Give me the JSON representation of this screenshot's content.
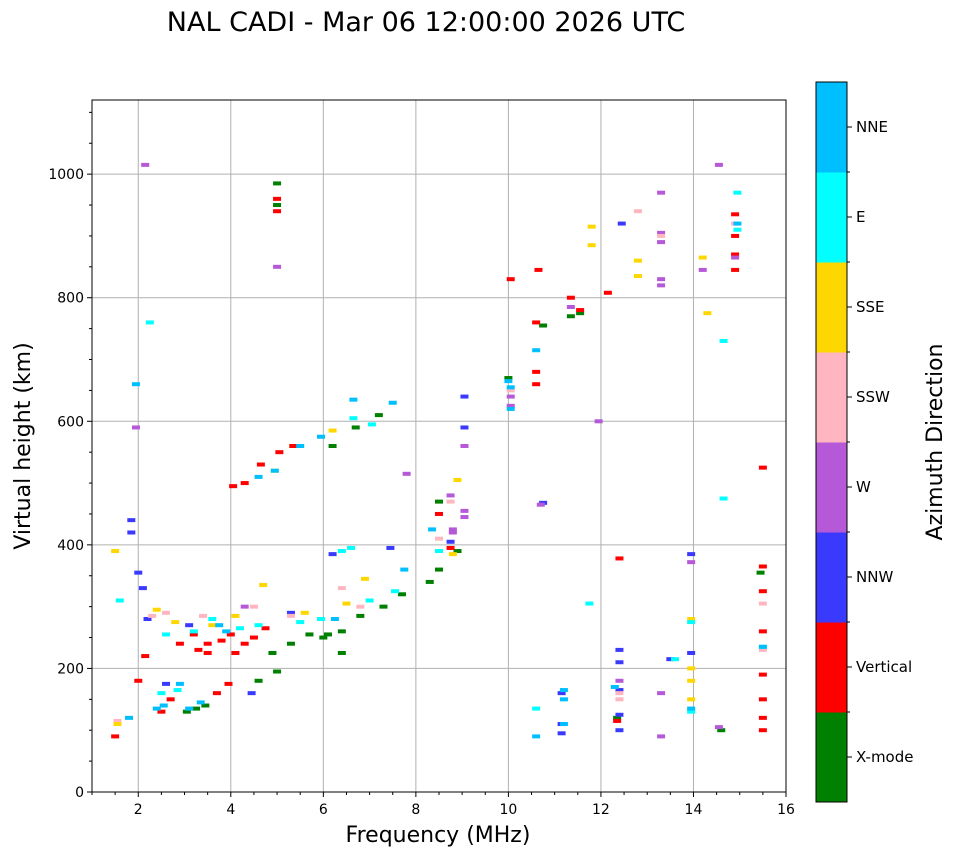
{
  "chart_data": {
    "type": "scatter",
    "title": "NAL CADI - Mar 06 12:00:00 2026 UTC",
    "xlabel": "Frequency (MHz)",
    "ylabel": "Virtual height (km)",
    "xlim": [
      1,
      16
    ],
    "ylim": [
      0,
      1120
    ],
    "xticks": [
      2,
      4,
      6,
      8,
      10,
      12,
      14,
      16
    ],
    "yticks": [
      0,
      200,
      400,
      600,
      800,
      1000
    ],
    "xtick_labels": [
      "2",
      "4",
      "6",
      "8",
      "10",
      "12",
      "14",
      "16"
    ],
    "ytick_labels": [
      "0",
      "200",
      "400",
      "600",
      "800",
      "1000"
    ],
    "grid": true,
    "colorbar": {
      "label": "Azimuth Direction",
      "categories": [
        {
          "name": "X-mode",
          "color": "#008000"
        },
        {
          "name": "Vertical",
          "color": "#ff0000"
        },
        {
          "name": "NNW",
          "color": "#3a3aff"
        },
        {
          "name": "W",
          "color": "#b559d9"
        },
        {
          "name": "SSW",
          "color": "#ffb6c1"
        },
        {
          "name": "SSE",
          "color": "#ffd700"
        },
        {
          "name": "E",
          "color": "#00ffff"
        },
        {
          "name": "NNE",
          "color": "#00bfff"
        }
      ]
    },
    "series": [
      {
        "name": "X-mode",
        "points": [
          [
            3.05,
            130
          ],
          [
            3.25,
            135
          ],
          [
            3.45,
            140
          ],
          [
            4.6,
            180
          ],
          [
            5.3,
            240
          ],
          [
            5.7,
            255
          ],
          [
            6.1,
            255
          ],
          [
            6.4,
            260
          ],
          [
            6.8,
            285
          ],
          [
            7.3,
            300
          ],
          [
            7.7,
            320
          ],
          [
            8.3,
            340
          ],
          [
            8.5,
            360
          ],
          [
            8.5,
            470
          ],
          [
            8.9,
            390
          ],
          [
            7.2,
            610
          ],
          [
            6.7,
            590
          ],
          [
            6.2,
            560
          ],
          [
            5.0,
            985
          ],
          [
            5.0,
            950
          ],
          [
            10.0,
            670
          ],
          [
            10.75,
            755
          ],
          [
            11.55,
            775
          ],
          [
            11.35,
            770
          ],
          [
            12.35,
            120
          ],
          [
            14.6,
            100
          ],
          [
            15.45,
            355
          ],
          [
            6.4,
            225
          ],
          [
            6.0,
            250
          ],
          [
            5.0,
            195
          ],
          [
            4.9,
            225
          ]
        ]
      },
      {
        "name": "Vertical",
        "points": [
          [
            1.5,
            90
          ],
          [
            2.0,
            180
          ],
          [
            2.15,
            220
          ],
          [
            2.5,
            130
          ],
          [
            2.7,
            150
          ],
          [
            2.9,
            240
          ],
          [
            3.2,
            255
          ],
          [
            3.5,
            240
          ],
          [
            3.8,
            245
          ],
          [
            4.0,
            255
          ],
          [
            4.1,
            225
          ],
          [
            4.3,
            240
          ],
          [
            4.5,
            250
          ],
          [
            4.75,
            265
          ],
          [
            3.95,
            175
          ],
          [
            3.7,
            160
          ],
          [
            3.5,
            225
          ],
          [
            3.3,
            230
          ],
          [
            4.05,
            495
          ],
          [
            4.3,
            500
          ],
          [
            4.65,
            530
          ],
          [
            5.05,
            550
          ],
          [
            5.35,
            560
          ],
          [
            5.0,
            940
          ],
          [
            5.0,
            960
          ],
          [
            8.5,
            450
          ],
          [
            8.75,
            395
          ],
          [
            10.6,
            760
          ],
          [
            10.65,
            845
          ],
          [
            10.6,
            680
          ],
          [
            10.6,
            660
          ],
          [
            11.35,
            800
          ],
          [
            11.55,
            780
          ],
          [
            12.15,
            808
          ],
          [
            12.4,
            378
          ],
          [
            12.35,
            115
          ],
          [
            14.9,
            935
          ],
          [
            14.9,
            870
          ],
          [
            14.9,
            845
          ],
          [
            14.9,
            900
          ],
          [
            15.5,
            525
          ],
          [
            15.5,
            365
          ],
          [
            15.5,
            325
          ],
          [
            15.5,
            260
          ],
          [
            15.5,
            190
          ],
          [
            15.5,
            150
          ],
          [
            15.5,
            120
          ],
          [
            15.5,
            100
          ],
          [
            10.05,
            830
          ]
        ]
      },
      {
        "name": "NNW",
        "points": [
          [
            1.85,
            420
          ],
          [
            1.85,
            440
          ],
          [
            2.0,
            355
          ],
          [
            2.1,
            330
          ],
          [
            2.2,
            280
          ],
          [
            4.45,
            160
          ],
          [
            6.2,
            385
          ],
          [
            8.75,
            405
          ],
          [
            9.05,
            590
          ],
          [
            9.05,
            640
          ],
          [
            10.75,
            468
          ],
          [
            11.15,
            160
          ],
          [
            11.15,
            110
          ],
          [
            11.15,
            95
          ],
          [
            12.4,
            230
          ],
          [
            12.4,
            210
          ],
          [
            12.4,
            100
          ],
          [
            12.4,
            125
          ],
          [
            12.4,
            165
          ],
          [
            12.45,
            920
          ],
          [
            13.5,
            215
          ],
          [
            13.95,
            225
          ],
          [
            13.95,
            385
          ],
          [
            7.45,
            395
          ],
          [
            5.3,
            290
          ],
          [
            3.1,
            270
          ],
          [
            2.6,
            175
          ]
        ]
      },
      {
        "name": "W",
        "points": [
          [
            1.95,
            590
          ],
          [
            2.15,
            1015
          ],
          [
            4.3,
            300
          ],
          [
            5.0,
            850
          ],
          [
            7.8,
            515
          ],
          [
            8.75,
            480
          ],
          [
            8.8,
            420
          ],
          [
            8.8,
            425
          ],
          [
            9.05,
            560
          ],
          [
            9.05,
            455
          ],
          [
            9.05,
            445
          ],
          [
            10.05,
            625
          ],
          [
            10.05,
            640
          ],
          [
            10.7,
            465
          ],
          [
            11.35,
            785
          ],
          [
            11.95,
            600
          ],
          [
            12.4,
            180
          ],
          [
            13.3,
            970
          ],
          [
            13.3,
            905
          ],
          [
            13.3,
            890
          ],
          [
            13.3,
            830
          ],
          [
            13.3,
            820
          ],
          [
            13.3,
            160
          ],
          [
            13.3,
            90
          ],
          [
            13.95,
            372
          ],
          [
            14.2,
            845
          ],
          [
            14.55,
            1015
          ],
          [
            14.55,
            105
          ],
          [
            14.9,
            865
          ]
        ]
      },
      {
        "name": "SSW",
        "points": [
          [
            1.55,
            115
          ],
          [
            2.3,
            285
          ],
          [
            2.6,
            290
          ],
          [
            3.4,
            285
          ],
          [
            4.5,
            300
          ],
          [
            5.3,
            285
          ],
          [
            6.4,
            330
          ],
          [
            6.8,
            300
          ],
          [
            8.5,
            410
          ],
          [
            8.75,
            470
          ],
          [
            10.05,
            650
          ],
          [
            12.8,
            940
          ],
          [
            13.3,
            900
          ],
          [
            14.9,
            920
          ],
          [
            15.5,
            305
          ],
          [
            15.5,
            230
          ],
          [
            12.4,
            150
          ],
          [
            12.4,
            160
          ]
        ]
      },
      {
        "name": "SSE",
        "points": [
          [
            1.5,
            390
          ],
          [
            1.55,
            110
          ],
          [
            2.4,
            295
          ],
          [
            2.8,
            275
          ],
          [
            3.6,
            270
          ],
          [
            4.1,
            285
          ],
          [
            4.7,
            335
          ],
          [
            5.6,
            290
          ],
          [
            6.2,
            585
          ],
          [
            6.5,
            305
          ],
          [
            6.9,
            345
          ],
          [
            8.8,
            385
          ],
          [
            8.9,
            505
          ],
          [
            11.8,
            915
          ],
          [
            11.8,
            885
          ],
          [
            12.8,
            860
          ],
          [
            12.8,
            835
          ],
          [
            13.95,
            280
          ],
          [
            13.95,
            200
          ],
          [
            13.95,
            180
          ],
          [
            13.95,
            150
          ],
          [
            14.2,
            865
          ],
          [
            14.3,
            775
          ],
          [
            4.95,
            520
          ]
        ]
      },
      {
        "name": "E",
        "points": [
          [
            1.6,
            310
          ],
          [
            2.25,
            760
          ],
          [
            2.5,
            160
          ],
          [
            2.6,
            255
          ],
          [
            2.85,
            165
          ],
          [
            3.2,
            260
          ],
          [
            3.6,
            280
          ],
          [
            4.2,
            265
          ],
          [
            4.6,
            270
          ],
          [
            5.5,
            275
          ],
          [
            5.95,
            280
          ],
          [
            6.4,
            390
          ],
          [
            6.65,
            605
          ],
          [
            6.6,
            395
          ],
          [
            7.0,
            310
          ],
          [
            7.05,
            595
          ],
          [
            7.55,
            325
          ],
          [
            8.5,
            390
          ],
          [
            10.6,
            135
          ],
          [
            11.75,
            305
          ],
          [
            13.6,
            215
          ],
          [
            13.95,
            130
          ],
          [
            13.95,
            275
          ],
          [
            14.65,
            730
          ],
          [
            14.65,
            475
          ],
          [
            14.95,
            970
          ],
          [
            14.95,
            910
          ],
          [
            15.5,
            235
          ]
        ]
      },
      {
        "name": "NNE",
        "points": [
          [
            1.8,
            120
          ],
          [
            1.95,
            660
          ],
          [
            2.4,
            135
          ],
          [
            2.55,
            140
          ],
          [
            2.9,
            175
          ],
          [
            3.1,
            135
          ],
          [
            3.35,
            145
          ],
          [
            3.75,
            270
          ],
          [
            3.9,
            260
          ],
          [
            4.6,
            510
          ],
          [
            4.95,
            520
          ],
          [
            5.5,
            560
          ],
          [
            5.95,
            575
          ],
          [
            6.25,
            280
          ],
          [
            6.65,
            635
          ],
          [
            7.5,
            630
          ],
          [
            7.75,
            360
          ],
          [
            8.35,
            425
          ],
          [
            10.0,
            665
          ],
          [
            10.05,
            655
          ],
          [
            10.05,
            620
          ],
          [
            10.6,
            90
          ],
          [
            10.6,
            715
          ],
          [
            11.2,
            150
          ],
          [
            11.2,
            165
          ],
          [
            11.2,
            110
          ],
          [
            12.3,
            170
          ],
          [
            13.95,
            135
          ],
          [
            14.95,
            920
          ],
          [
            15.5,
            235
          ]
        ]
      }
    ]
  }
}
